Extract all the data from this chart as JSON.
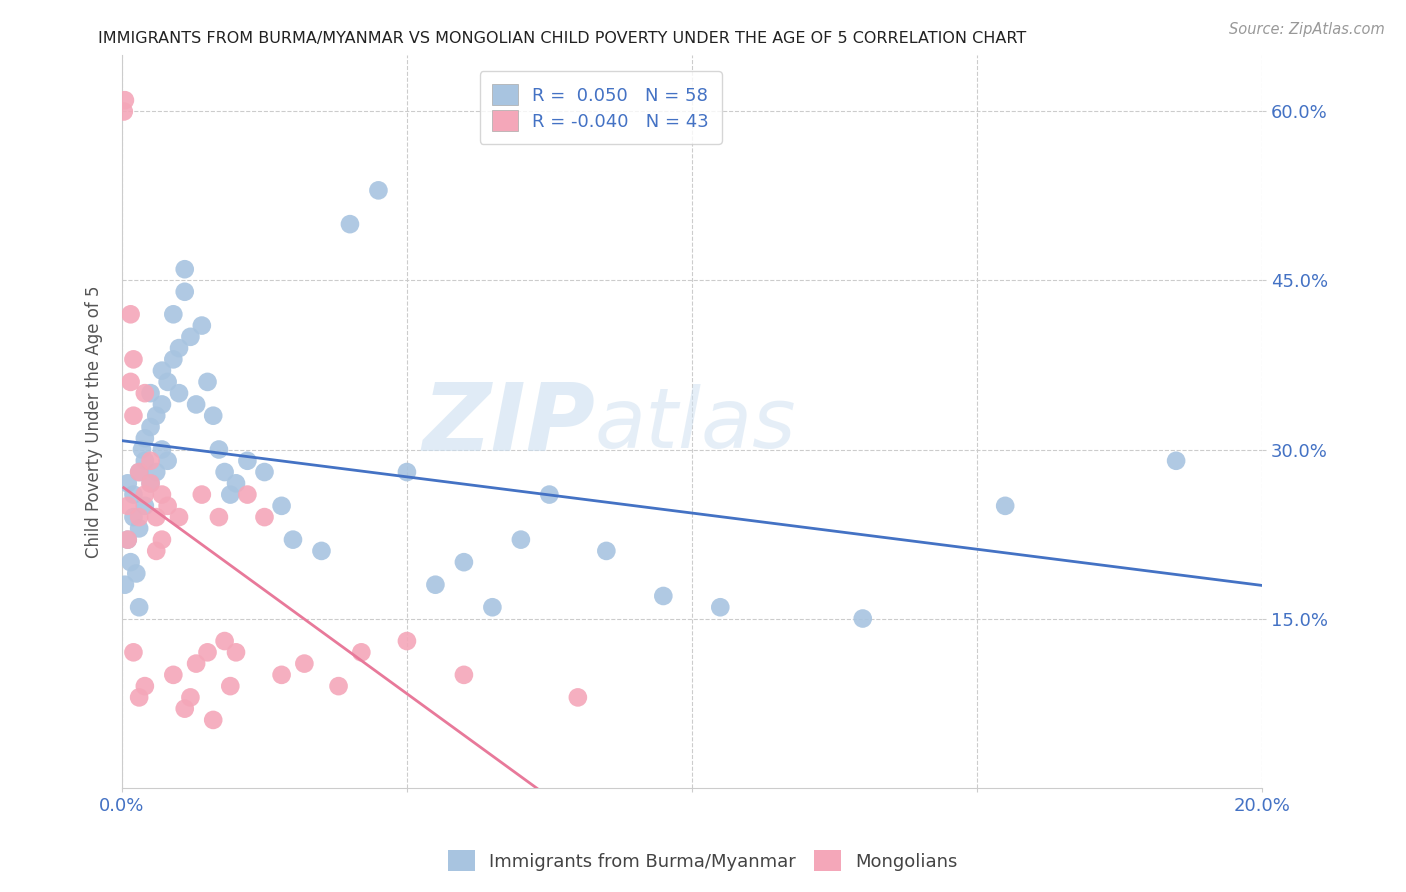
{
  "title": "IMMIGRANTS FROM BURMA/MYANMAR VS MONGOLIAN CHILD POVERTY UNDER THE AGE OF 5 CORRELATION CHART",
  "source": "Source: ZipAtlas.com",
  "ylabel": "Child Poverty Under the Age of 5",
  "y_tick_labels": [
    "15.0%",
    "30.0%",
    "45.0%",
    "60.0%"
  ],
  "xlim": [
    0.0,
    0.2
  ],
  "ylim": [
    0.0,
    0.65
  ],
  "blue_r": "0.050",
  "blue_n": "58",
  "pink_r": "-0.040",
  "pink_n": "43",
  "legend_label_blue": "Immigrants from Burma/Myanmar",
  "legend_label_pink": "Mongolians",
  "blue_color": "#a8c4e0",
  "pink_color": "#f4a7b9",
  "blue_line_color": "#4472c4",
  "pink_line_color": "#e8799a",
  "watermark_zip": "ZIP",
  "watermark_atlas": "atlas",
  "title_color": "#222222",
  "axis_label_color": "#4472c4",
  "blue_scatter_x": [
    0.0005,
    0.001,
    0.001,
    0.0015,
    0.002,
    0.002,
    0.0025,
    0.003,
    0.003,
    0.003,
    0.0035,
    0.004,
    0.004,
    0.004,
    0.005,
    0.005,
    0.005,
    0.006,
    0.006,
    0.007,
    0.007,
    0.007,
    0.008,
    0.008,
    0.009,
    0.009,
    0.01,
    0.01,
    0.011,
    0.011,
    0.012,
    0.013,
    0.014,
    0.015,
    0.016,
    0.017,
    0.018,
    0.019,
    0.02,
    0.022,
    0.025,
    0.028,
    0.03,
    0.035,
    0.04,
    0.045,
    0.05,
    0.055,
    0.06,
    0.065,
    0.07,
    0.075,
    0.085,
    0.095,
    0.105,
    0.13,
    0.155,
    0.185
  ],
  "blue_scatter_y": [
    0.18,
    0.22,
    0.27,
    0.2,
    0.24,
    0.26,
    0.19,
    0.16,
    0.23,
    0.28,
    0.3,
    0.25,
    0.29,
    0.31,
    0.27,
    0.32,
    0.35,
    0.28,
    0.33,
    0.3,
    0.34,
    0.37,
    0.29,
    0.36,
    0.38,
    0.42,
    0.35,
    0.39,
    0.44,
    0.46,
    0.4,
    0.34,
    0.41,
    0.36,
    0.33,
    0.3,
    0.28,
    0.26,
    0.27,
    0.29,
    0.28,
    0.25,
    0.22,
    0.21,
    0.5,
    0.53,
    0.28,
    0.18,
    0.2,
    0.16,
    0.22,
    0.26,
    0.21,
    0.17,
    0.16,
    0.15,
    0.25,
    0.29
  ],
  "pink_scatter_x": [
    0.0003,
    0.0005,
    0.001,
    0.001,
    0.0015,
    0.0015,
    0.002,
    0.002,
    0.002,
    0.003,
    0.003,
    0.003,
    0.004,
    0.004,
    0.004,
    0.005,
    0.005,
    0.006,
    0.006,
    0.007,
    0.007,
    0.008,
    0.009,
    0.01,
    0.011,
    0.012,
    0.013,
    0.014,
    0.015,
    0.016,
    0.017,
    0.018,
    0.019,
    0.02,
    0.022,
    0.025,
    0.028,
    0.032,
    0.038,
    0.042,
    0.05,
    0.06,
    0.08
  ],
  "pink_scatter_y": [
    0.6,
    0.61,
    0.22,
    0.25,
    0.42,
    0.36,
    0.38,
    0.33,
    0.12,
    0.28,
    0.24,
    0.08,
    0.26,
    0.35,
    0.09,
    0.27,
    0.29,
    0.24,
    0.21,
    0.26,
    0.22,
    0.25,
    0.1,
    0.24,
    0.07,
    0.08,
    0.11,
    0.26,
    0.12,
    0.06,
    0.24,
    0.13,
    0.09,
    0.12,
    0.26,
    0.24,
    0.1,
    0.11,
    0.09,
    0.12,
    0.13,
    0.1,
    0.08
  ]
}
